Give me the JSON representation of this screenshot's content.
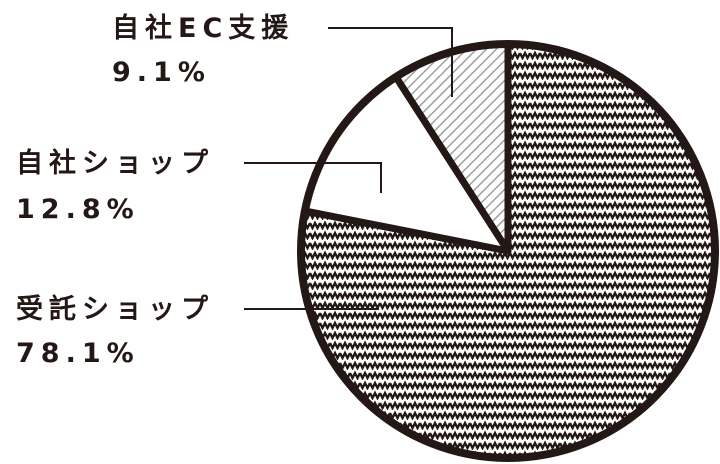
{
  "chart_data": {
    "type": "pie",
    "title": "",
    "start_angle_deg": 0,
    "direction": "clockwise",
    "slices": [
      {
        "label": "受託ショップ",
        "value": 78.1,
        "value_label": "78.1%",
        "fill": "zigzag",
        "color": "#231815"
      },
      {
        "label": "自社ショップ",
        "value": 12.8,
        "value_label": "12.8%",
        "fill": "solid-white",
        "color": "#ffffff"
      },
      {
        "label": "自社EC支援",
        "value": 9.1,
        "value_label": "9.1%",
        "fill": "diagonal-hatch",
        "color": "#9fa0a0"
      }
    ],
    "outline_color": "#231815"
  }
}
